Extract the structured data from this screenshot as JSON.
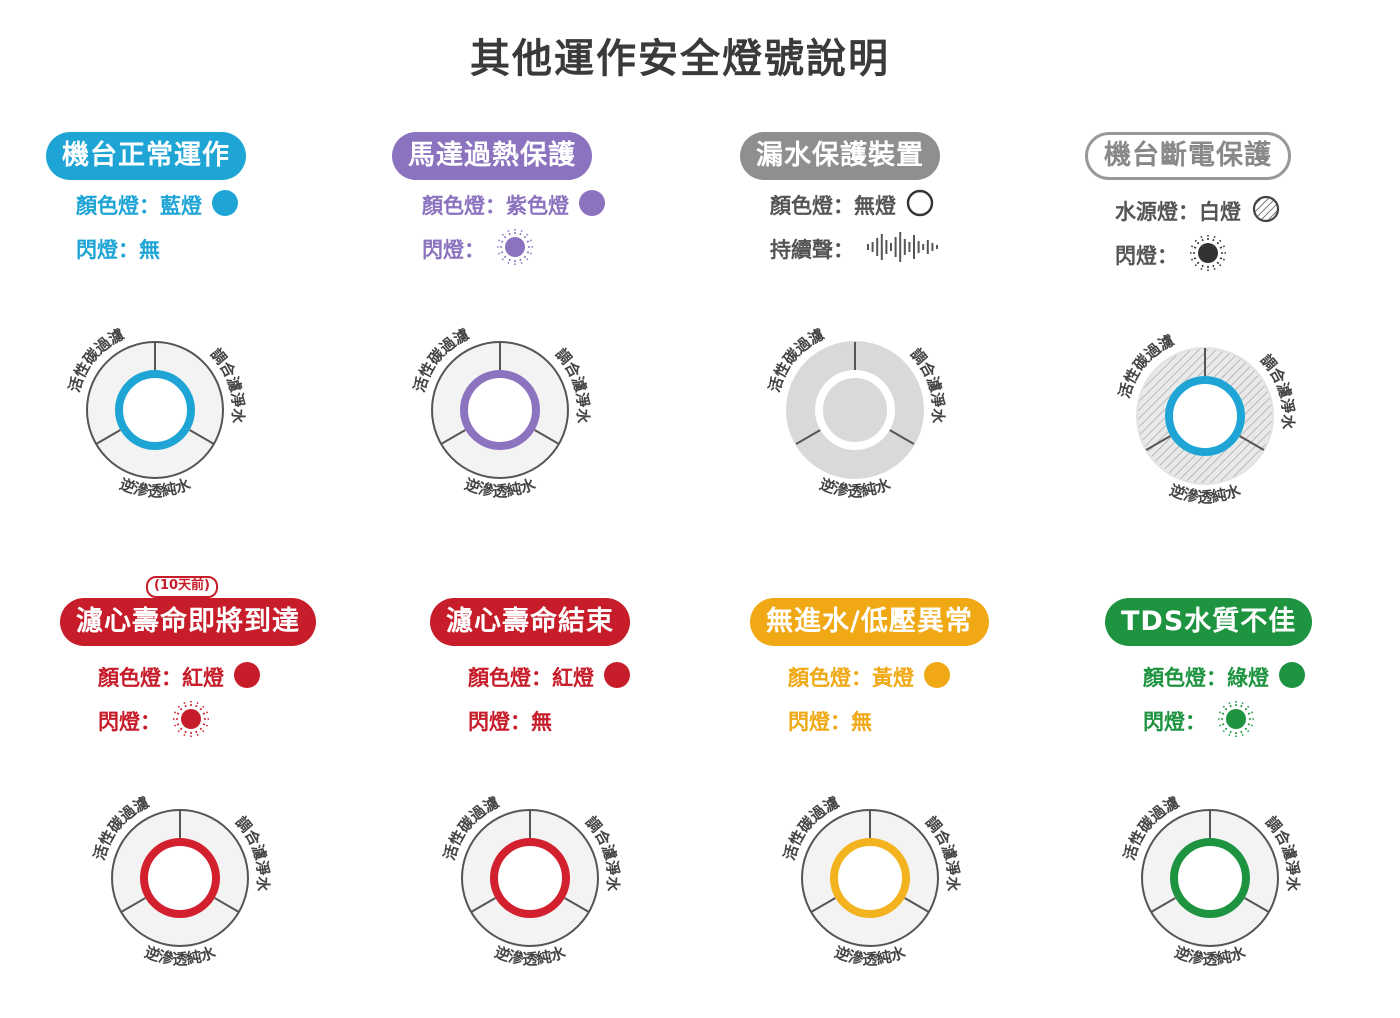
{
  "title": "其他運作安全燈號說明",
  "cards": [
    {
      "name": "machine-normal",
      "label": "機台正常運作",
      "pill": "#1ea5d6",
      "outline": false,
      "badge": "",
      "line1": "顏色燈：藍燈",
      "line1_color": "#1ea5d6",
      "sym1": "dot",
      "line2": "閃燈：無",
      "line2_color": "#1ea5d6",
      "sym2": "none",
      "ring": "#1ea5d6",
      "face": "plain"
    },
    {
      "name": "motor-overheat",
      "label": "馬達過熱保護",
      "pill": "#8c73bf",
      "outline": false,
      "badge": "",
      "line1": "顏色燈：紫色燈",
      "line1_color": "#8c73bf",
      "sym1": "dot",
      "line2": "閃燈：",
      "line2_color": "#8c73bf",
      "sym2": "flash",
      "ring": "#8c73bf",
      "face": "plain"
    },
    {
      "name": "leak-protection",
      "label": "漏水保護裝置",
      "pill": "#8f8f8f",
      "outline": false,
      "badge": "",
      "line1": "顏色燈：無燈",
      "line1_color": "#555555",
      "sym1": "empty",
      "line2": "持續聲：",
      "line2_color": "#555555",
      "sym2": "wave",
      "ring": "#ffffff",
      "face": "gray"
    },
    {
      "name": "power-off-protection",
      "label": "機台斷電保護",
      "pill": "#ffffff",
      "outline": true,
      "badge": "",
      "line1": "水源燈：白燈",
      "line1_color": "#555555",
      "sym1": "hatch",
      "line2": "閃燈：",
      "line2_color": "#555555",
      "sym2": "flash",
      "ring": "#1ea5d6",
      "face": "hatch"
    },
    {
      "name": "filter-life-near-end",
      "label": "濾心壽命即將到達",
      "pill": "#c71d2a",
      "outline": false,
      "badge": "(10天前)",
      "line1": "顏色燈：紅燈",
      "line1_color": "#c71d2a",
      "sym1": "dot",
      "line2": "閃燈：",
      "line2_color": "#c71d2a",
      "sym2": "flash",
      "ring": "#d3202f",
      "face": "plain"
    },
    {
      "name": "filter-life-end",
      "label": "濾心壽命結束",
      "pill": "#c71d2a",
      "outline": false,
      "badge": "",
      "line1": "顏色燈：紅燈",
      "line1_color": "#c71d2a",
      "sym1": "dot",
      "line2": "閃燈：無",
      "line2_color": "#c71d2a",
      "sym2": "none",
      "ring": "#d3202f",
      "face": "plain"
    },
    {
      "name": "no-water-low-pressure",
      "label": "無進水/低壓異常",
      "pill": "#f0a915",
      "outline": false,
      "badge": "",
      "line1": "顏色燈：黃燈",
      "line1_color": "#f0a915",
      "sym1": "dot",
      "line2": "閃燈：無",
      "line2_color": "#f0a915",
      "sym2": "none",
      "ring": "#f3b31f",
      "face": "plain"
    },
    {
      "name": "tds-poor",
      "label": "TDS水質不佳",
      "pill": "#1e9440",
      "outline": false,
      "badge": "",
      "line1": "顏色燈：綠燈",
      "line1_color": "#1e9440",
      "sym1": "dot",
      "line2": "閃燈：",
      "line2_color": "#1e9440",
      "sym2": "flash",
      "ring": "#1e9440",
      "face": "plain"
    }
  ],
  "dial_labels": {
    "left": "活性碳過濾",
    "right": "調合濾淨水",
    "bottom": "逆滲透純水"
  },
  "wave_char": "𝄃"
}
